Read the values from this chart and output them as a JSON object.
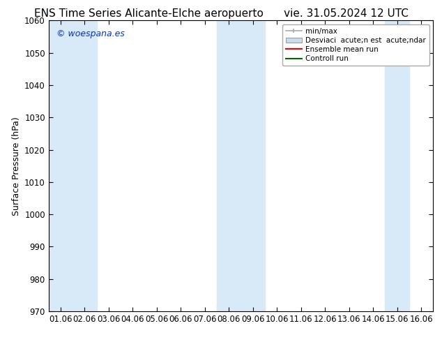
{
  "title_left": "ENS Time Series Alicante-Elche aeropuerto",
  "title_right": "vie. 31.05.2024 12 UTC",
  "ylabel": "Surface Pressure (hPa)",
  "ylim": [
    970,
    1060
  ],
  "yticks": [
    970,
    980,
    990,
    1000,
    1010,
    1020,
    1030,
    1040,
    1050,
    1060
  ],
  "xtick_labels": [
    "01.06",
    "02.06",
    "03.06",
    "04.06",
    "05.06",
    "06.06",
    "07.06",
    "08.06",
    "09.06",
    "10.06",
    "11.06",
    "12.06",
    "13.06",
    "14.06",
    "15.06",
    "16.06"
  ],
  "watermark": "© woespana.es",
  "watermark_color": "#0033cc",
  "background_color": "#ffffff",
  "plot_bg_color": "#ffffff",
  "shaded_band_color": "#d8eaf8",
  "shaded_col_indices": [
    0,
    1,
    7,
    8,
    14
  ],
  "legend_labels": [
    "min/max",
    "Desviaci  acute;n est  acute;ndar",
    "Ensemble mean run",
    "Controll run"
  ],
  "legend_minmax_color": "#aaaaaa",
  "legend_desv_color": "#c8ddf0",
  "legend_ens_color": "#ff0000",
  "legend_ctrl_color": "#006600",
  "title_fontsize": 11,
  "tick_fontsize": 8.5,
  "ylabel_fontsize": 9,
  "watermark_fontsize": 9
}
